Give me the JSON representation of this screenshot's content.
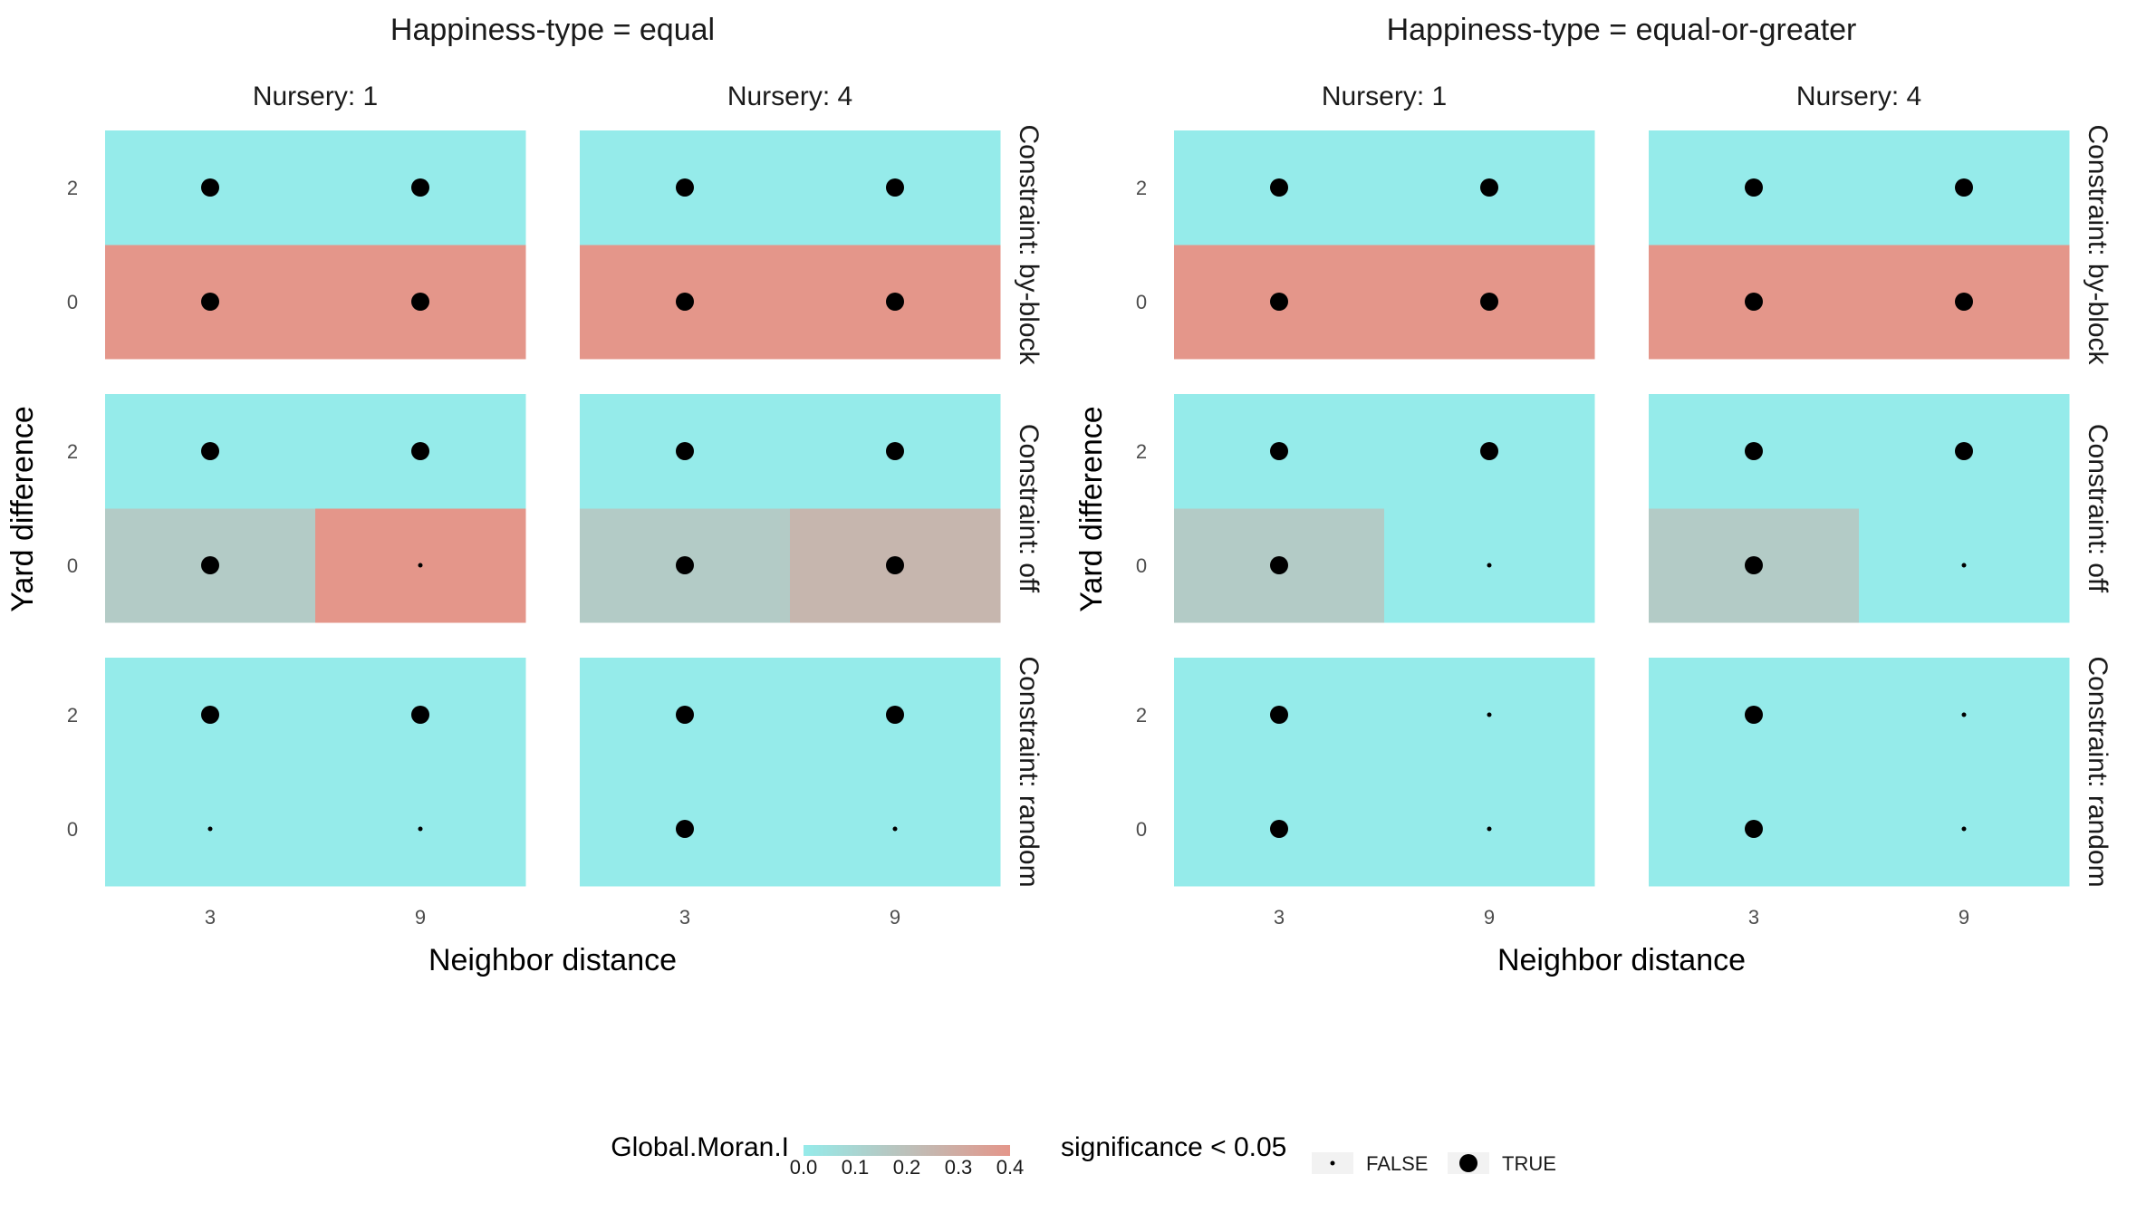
{
  "chart_data": {
    "type": "heatmap",
    "x_label": "Neighbor distance",
    "y_label": "Yard difference",
    "x_values": [
      3,
      9
    ],
    "y_values": [
      0,
      2
    ],
    "x_tick_labels": [
      "3",
      "9"
    ],
    "y_tick_labels": [
      "0",
      "2"
    ],
    "nursery_labels": [
      "Nursery: 1",
      "Nursery: 4"
    ],
    "constraint_labels": [
      "Constraint: by-block",
      "Constraint: off",
      "Constraint: random"
    ],
    "fill_variable": "Global.Moran.I",
    "fill_range": [
      0.0,
      0.4
    ],
    "fill_colors": {
      "low": "#95ebea",
      "high": "#e4968a"
    },
    "fill_legend_ticks": [
      "0.0",
      "0.1",
      "0.2",
      "0.3",
      "0.4"
    ],
    "size_variable": "significance < 0.05",
    "size_legend": [
      "FALSE",
      "TRUE"
    ],
    "happiness_panels": [
      {
        "title": "Happiness-type = equal",
        "cells": [
          {
            "constraint": "by-block",
            "nursery": 1,
            "x": 3,
            "y": 2,
            "moran": 0.0,
            "sig": true
          },
          {
            "constraint": "by-block",
            "nursery": 1,
            "x": 9,
            "y": 2,
            "moran": 0.0,
            "sig": true
          },
          {
            "constraint": "by-block",
            "nursery": 1,
            "x": 3,
            "y": 0,
            "moran": 0.4,
            "sig": true
          },
          {
            "constraint": "by-block",
            "nursery": 1,
            "x": 9,
            "y": 0,
            "moran": 0.4,
            "sig": true
          },
          {
            "constraint": "by-block",
            "nursery": 4,
            "x": 3,
            "y": 2,
            "moran": 0.0,
            "sig": true
          },
          {
            "constraint": "by-block",
            "nursery": 4,
            "x": 9,
            "y": 2,
            "moran": 0.0,
            "sig": true
          },
          {
            "constraint": "by-block",
            "nursery": 4,
            "x": 3,
            "y": 0,
            "moran": 0.4,
            "sig": true
          },
          {
            "constraint": "by-block",
            "nursery": 4,
            "x": 9,
            "y": 0,
            "moran": 0.4,
            "sig": true
          },
          {
            "constraint": "off",
            "nursery": 1,
            "x": 3,
            "y": 2,
            "moran": 0.0,
            "sig": true
          },
          {
            "constraint": "off",
            "nursery": 1,
            "x": 9,
            "y": 2,
            "moran": 0.0,
            "sig": true
          },
          {
            "constraint": "off",
            "nursery": 1,
            "x": 3,
            "y": 0,
            "moran": 0.15,
            "sig": true
          },
          {
            "constraint": "off",
            "nursery": 1,
            "x": 9,
            "y": 0,
            "moran": 0.4,
            "sig": false
          },
          {
            "constraint": "off",
            "nursery": 4,
            "x": 3,
            "y": 2,
            "moran": 0.0,
            "sig": true
          },
          {
            "constraint": "off",
            "nursery": 4,
            "x": 9,
            "y": 2,
            "moran": 0.0,
            "sig": true
          },
          {
            "constraint": "off",
            "nursery": 4,
            "x": 3,
            "y": 0,
            "moran": 0.15,
            "sig": true
          },
          {
            "constraint": "off",
            "nursery": 4,
            "x": 9,
            "y": 0,
            "moran": 0.25,
            "sig": true
          },
          {
            "constraint": "random",
            "nursery": 1,
            "x": 3,
            "y": 2,
            "moran": 0.0,
            "sig": true
          },
          {
            "constraint": "random",
            "nursery": 1,
            "x": 9,
            "y": 2,
            "moran": 0.0,
            "sig": true
          },
          {
            "constraint": "random",
            "nursery": 1,
            "x": 3,
            "y": 0,
            "moran": 0.0,
            "sig": false
          },
          {
            "constraint": "random",
            "nursery": 1,
            "x": 9,
            "y": 0,
            "moran": 0.0,
            "sig": false
          },
          {
            "constraint": "random",
            "nursery": 4,
            "x": 3,
            "y": 2,
            "moran": 0.0,
            "sig": true
          },
          {
            "constraint": "random",
            "nursery": 4,
            "x": 9,
            "y": 2,
            "moran": 0.0,
            "sig": true
          },
          {
            "constraint": "random",
            "nursery": 4,
            "x": 3,
            "y": 0,
            "moran": 0.0,
            "sig": true
          },
          {
            "constraint": "random",
            "nursery": 4,
            "x": 9,
            "y": 0,
            "moran": 0.0,
            "sig": false
          }
        ]
      },
      {
        "title": "Happiness-type = equal-or-greater",
        "cells": [
          {
            "constraint": "by-block",
            "nursery": 1,
            "x": 3,
            "y": 2,
            "moran": 0.0,
            "sig": true
          },
          {
            "constraint": "by-block",
            "nursery": 1,
            "x": 9,
            "y": 2,
            "moran": 0.0,
            "sig": true
          },
          {
            "constraint": "by-block",
            "nursery": 1,
            "x": 3,
            "y": 0,
            "moran": 0.4,
            "sig": true
          },
          {
            "constraint": "by-block",
            "nursery": 1,
            "x": 9,
            "y": 0,
            "moran": 0.4,
            "sig": true
          },
          {
            "constraint": "by-block",
            "nursery": 4,
            "x": 3,
            "y": 2,
            "moran": 0.0,
            "sig": true
          },
          {
            "constraint": "by-block",
            "nursery": 4,
            "x": 9,
            "y": 2,
            "moran": 0.0,
            "sig": true
          },
          {
            "constraint": "by-block",
            "nursery": 4,
            "x": 3,
            "y": 0,
            "moran": 0.4,
            "sig": true
          },
          {
            "constraint": "by-block",
            "nursery": 4,
            "x": 9,
            "y": 0,
            "moran": 0.4,
            "sig": true
          },
          {
            "constraint": "off",
            "nursery": 1,
            "x": 3,
            "y": 2,
            "moran": 0.0,
            "sig": true
          },
          {
            "constraint": "off",
            "nursery": 1,
            "x": 9,
            "y": 2,
            "moran": 0.0,
            "sig": true
          },
          {
            "constraint": "off",
            "nursery": 1,
            "x": 3,
            "y": 0,
            "moran": 0.15,
            "sig": true
          },
          {
            "constraint": "off",
            "nursery": 1,
            "x": 9,
            "y": 0,
            "moran": 0.0,
            "sig": false
          },
          {
            "constraint": "off",
            "nursery": 4,
            "x": 3,
            "y": 2,
            "moran": 0.0,
            "sig": true
          },
          {
            "constraint": "off",
            "nursery": 4,
            "x": 9,
            "y": 2,
            "moran": 0.0,
            "sig": true
          },
          {
            "constraint": "off",
            "nursery": 4,
            "x": 3,
            "y": 0,
            "moran": 0.15,
            "sig": true
          },
          {
            "constraint": "off",
            "nursery": 4,
            "x": 9,
            "y": 0,
            "moran": 0.0,
            "sig": false
          },
          {
            "constraint": "random",
            "nursery": 1,
            "x": 3,
            "y": 2,
            "moran": 0.0,
            "sig": true
          },
          {
            "constraint": "random",
            "nursery": 1,
            "x": 9,
            "y": 2,
            "moran": 0.0,
            "sig": false
          },
          {
            "constraint": "random",
            "nursery": 1,
            "x": 3,
            "y": 0,
            "moran": 0.0,
            "sig": true
          },
          {
            "constraint": "random",
            "nursery": 1,
            "x": 9,
            "y": 0,
            "moran": 0.0,
            "sig": false
          },
          {
            "constraint": "random",
            "nursery": 4,
            "x": 3,
            "y": 2,
            "moran": 0.0,
            "sig": true
          },
          {
            "constraint": "random",
            "nursery": 4,
            "x": 9,
            "y": 2,
            "moran": 0.0,
            "sig": false
          },
          {
            "constraint": "random",
            "nursery": 4,
            "x": 3,
            "y": 0,
            "moran": 0.0,
            "sig": true
          },
          {
            "constraint": "random",
            "nursery": 4,
            "x": 9,
            "y": 0,
            "moran": 0.0,
            "sig": false
          }
        ]
      }
    ]
  }
}
